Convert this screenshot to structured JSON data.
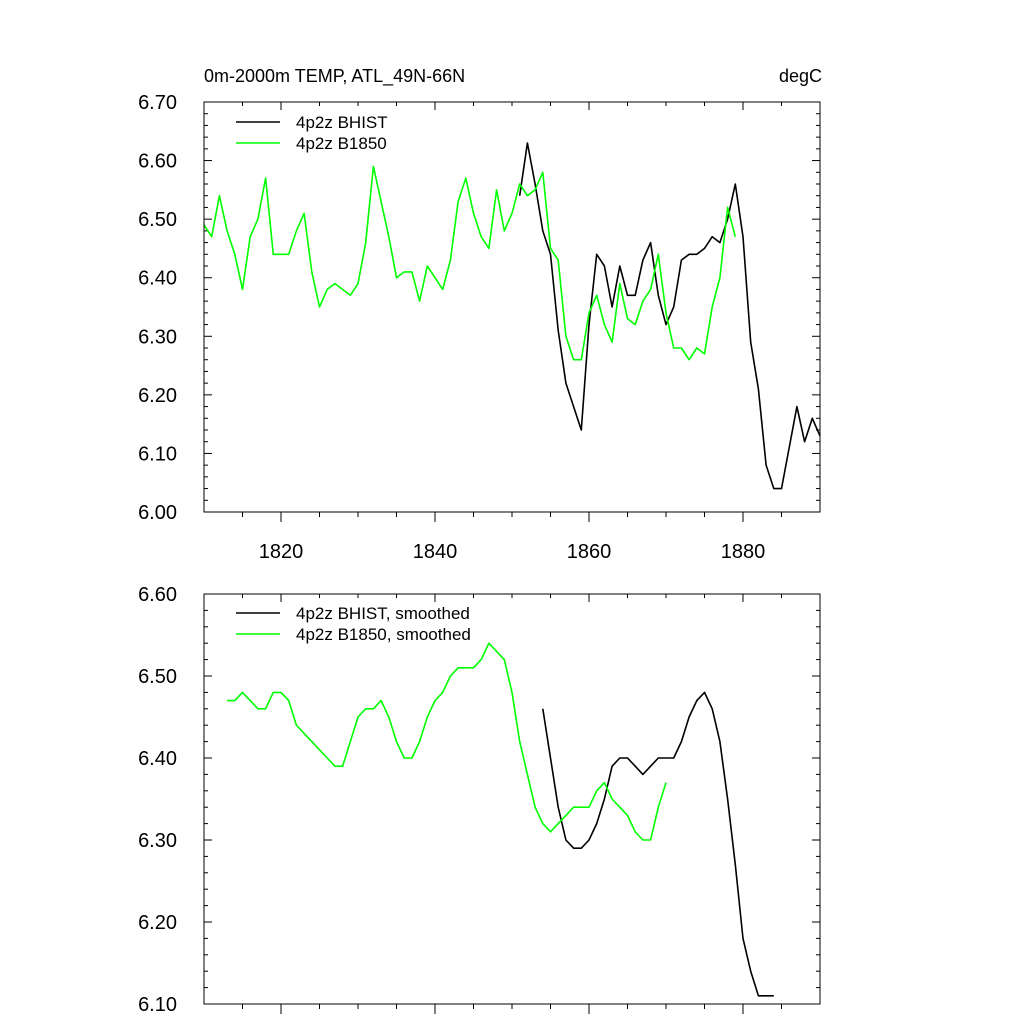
{
  "chart_data": [
    {
      "type": "line",
      "title": "0m-2000m TEMP, ATL_49N-66N",
      "units_label": "degC",
      "xlabel": "",
      "ylabel": "",
      "xlim": [
        1810,
        1890
      ],
      "ylim": [
        6.0,
        6.7
      ],
      "xticks": [
        1820,
        1840,
        1860,
        1880
      ],
      "yticks": [
        6.0,
        6.1,
        6.2,
        6.3,
        6.4,
        6.5,
        6.6,
        6.7
      ],
      "show_x_tick_labels": true,
      "legend_position": "top-left",
      "series": [
        {
          "name": "4p2z BHIST",
          "color": "#000000",
          "x_start": 1851,
          "values": [
            6.54,
            6.63,
            6.56,
            6.48,
            6.44,
            6.31,
            6.22,
            6.18,
            6.14,
            6.32,
            6.44,
            6.42,
            6.35,
            6.42,
            6.37,
            6.37,
            6.43,
            6.46,
            6.37,
            6.32,
            6.35,
            6.43,
            6.44,
            6.44,
            6.45,
            6.47,
            6.46,
            6.5,
            6.56,
            6.47,
            6.29,
            6.21,
            6.08,
            6.04,
            6.04,
            6.11,
            6.18,
            6.12,
            6.16,
            6.13
          ]
        },
        {
          "name": "4p2z B1850",
          "color": "#00ff00",
          "x_start": 1810,
          "values": [
            6.49,
            6.47,
            6.54,
            6.48,
            6.44,
            6.38,
            6.47,
            6.5,
            6.57,
            6.44,
            6.44,
            6.44,
            6.48,
            6.51,
            6.41,
            6.35,
            6.38,
            6.39,
            6.38,
            6.37,
            6.39,
            6.46,
            6.59,
            6.53,
            6.47,
            6.4,
            6.41,
            6.41,
            6.36,
            6.42,
            6.4,
            6.38,
            6.43,
            6.53,
            6.57,
            6.51,
            6.47,
            6.45,
            6.55,
            6.48,
            6.51,
            6.56,
            6.54,
            6.55,
            6.58,
            6.45,
            6.43,
            6.3,
            6.26,
            6.26,
            6.34,
            6.37,
            6.32,
            6.29,
            6.39,
            6.33,
            6.32,
            6.36,
            6.38,
            6.44,
            6.34,
            6.28,
            6.28,
            6.26,
            6.28,
            6.27,
            6.35,
            6.4,
            6.52,
            6.47
          ]
        }
      ]
    },
    {
      "type": "line",
      "title": "",
      "xlabel": "",
      "ylabel": "",
      "xlim": [
        1810,
        1890
      ],
      "ylim": [
        6.1,
        6.6
      ],
      "xticks": [
        1820,
        1840,
        1860,
        1880
      ],
      "yticks": [
        6.1,
        6.2,
        6.3,
        6.4,
        6.5,
        6.6
      ],
      "show_x_tick_labels": false,
      "legend_position": "top-left",
      "series": [
        {
          "name": "4p2z BHIST, smoothed",
          "color": "#000000",
          "x_start": 1854,
          "values": [
            6.46,
            6.4,
            6.34,
            6.3,
            6.29,
            6.29,
            6.3,
            6.32,
            6.35,
            6.39,
            6.4,
            6.4,
            6.39,
            6.38,
            6.39,
            6.4,
            6.4,
            6.4,
            6.42,
            6.45,
            6.47,
            6.48,
            6.46,
            6.42,
            6.35,
            6.27,
            6.18,
            6.14,
            6.11,
            6.11,
            6.11
          ]
        },
        {
          "name": "4p2z B1850, smoothed",
          "color": "#00ff00",
          "x_start": 1813,
          "values": [
            6.47,
            6.47,
            6.48,
            6.47,
            6.46,
            6.46,
            6.48,
            6.48,
            6.47,
            6.44,
            6.43,
            6.42,
            6.41,
            6.4,
            6.39,
            6.39,
            6.42,
            6.45,
            6.46,
            6.46,
            6.47,
            6.45,
            6.42,
            6.4,
            6.4,
            6.42,
            6.45,
            6.47,
            6.48,
            6.5,
            6.51,
            6.51,
            6.51,
            6.52,
            6.54,
            6.53,
            6.52,
            6.48,
            6.42,
            6.38,
            6.34,
            6.32,
            6.31,
            6.32,
            6.33,
            6.34,
            6.34,
            6.34,
            6.36,
            6.37,
            6.35,
            6.34,
            6.33,
            6.31,
            6.3,
            6.3,
            6.34,
            6.37
          ]
        }
      ]
    }
  ]
}
